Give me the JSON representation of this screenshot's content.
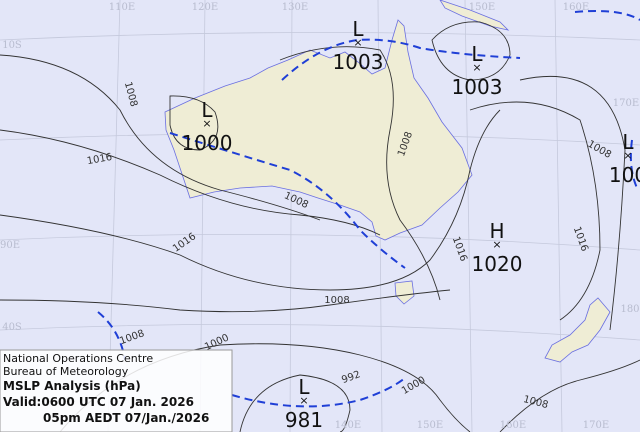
{
  "info": {
    "centre": "National Operations Centre",
    "agency": "Bureau of Meteorology",
    "title": "MSLP Analysis (hPa)",
    "valid_utc": "Valid:0600 UTC 07 Jan. 2026",
    "valid_local": "05pm AEDT 07/Jan./2026"
  },
  "systems": [
    {
      "symbol": "L",
      "pressure": 1003
    },
    {
      "symbol": "L",
      "pressure": 1003
    },
    {
      "symbol": "L",
      "pressure": 1000
    },
    {
      "symbol": "L",
      "pressure": "100"
    },
    {
      "symbol": "H",
      "pressure": 1020
    },
    {
      "symbol": "L",
      "pressure": 981
    }
  ],
  "isobar_labels": [
    1008,
    1016,
    1008,
    1008,
    1016,
    1008,
    1016,
    1016,
    1008,
    1008,
    1000,
    992,
    1000,
    1008
  ],
  "grid_labels": [
    "110E",
    "120E",
    "130E",
    "150E",
    "160E",
    "10S",
    "90E",
    "40S",
    "140E",
    "150E",
    "160E",
    "170E",
    "170E",
    "180"
  ]
}
